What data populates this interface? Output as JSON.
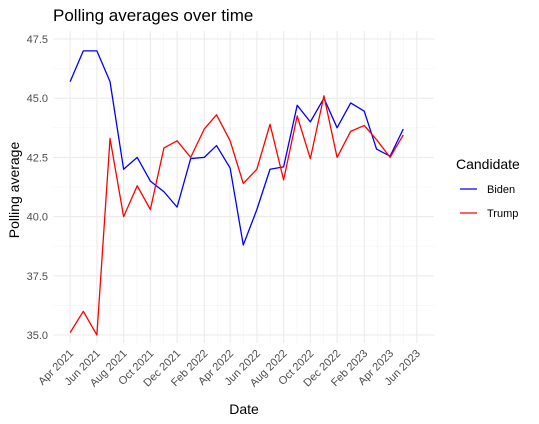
{
  "chart_data": {
    "type": "line",
    "title": "Polling averages over time",
    "xlabel": "Date",
    "ylabel": "Polling average",
    "x_tick_labels": [
      "Apr 2021",
      "Jun 2021",
      "Aug 2021",
      "Oct 2021",
      "Dec 2021",
      "Feb 2022",
      "Apr 2022",
      "Jun 2022",
      "Aug 2022",
      "Oct 2022",
      "Dec 2022",
      "Feb 2023",
      "Apr 2023",
      "Jun 2023"
    ],
    "y_tick_labels": [
      "35.0",
      "37.5",
      "40.0",
      "42.5",
      "45.0",
      "47.5"
    ],
    "ylim": [
      35.0,
      47.5
    ],
    "x_range": [
      "2021-04-01",
      "2023-06-01"
    ],
    "grid": true,
    "legend": {
      "title": "Candidate",
      "position": "right"
    },
    "x": [
      "2021-04-01",
      "2021-05-01",
      "2021-06-01",
      "2021-07-01",
      "2021-08-01",
      "2021-09-01",
      "2021-10-01",
      "2021-11-01",
      "2021-12-01",
      "2022-01-01",
      "2022-02-01",
      "2022-03-01",
      "2022-04-01",
      "2022-05-01",
      "2022-06-01",
      "2022-07-01",
      "2022-08-01",
      "2022-09-01",
      "2022-10-01",
      "2022-11-01",
      "2022-12-01",
      "2023-01-01",
      "2023-02-01",
      "2023-03-01",
      "2023-04-01",
      "2023-05-01"
    ],
    "series": [
      {
        "name": "Biden",
        "color": "#0000ff",
        "values": [
          45.7,
          47.0,
          47.0,
          45.7,
          42.0,
          42.5,
          41.5,
          41.05,
          40.4,
          42.45,
          42.5,
          43.0,
          42.05,
          38.8,
          40.3,
          42.0,
          42.1,
          44.7,
          44.0,
          45.0,
          43.75,
          44.8,
          44.45,
          42.85,
          42.55,
          43.7
        ]
      },
      {
        "name": "Trump",
        "color": "#ff0000",
        "values": [
          35.1,
          36.0,
          35.0,
          43.3,
          40.0,
          41.3,
          40.3,
          42.9,
          43.2,
          42.5,
          43.7,
          44.3,
          43.2,
          41.4,
          42.0,
          43.9,
          41.55,
          44.25,
          42.45,
          45.1,
          42.5,
          43.6,
          43.85,
          43.25,
          42.5,
          43.45
        ]
      }
    ]
  }
}
